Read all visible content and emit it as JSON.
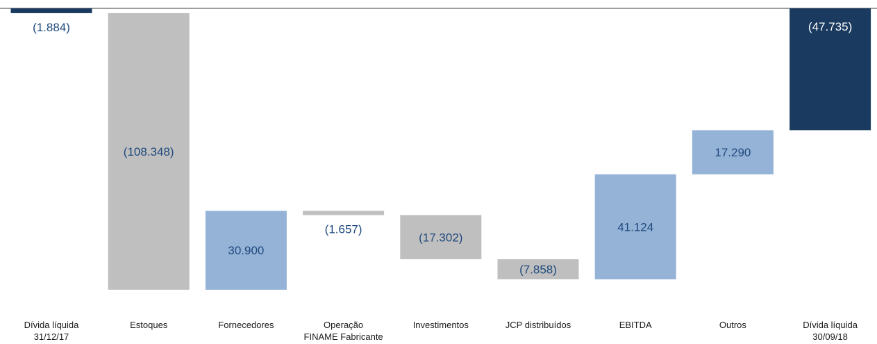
{
  "chart_data": {
    "type": "bar",
    "subtype": "waterfall",
    "categories": [
      [
        "Dívida líquida",
        "31/12/17"
      ],
      [
        "Estoques"
      ],
      [
        "Fornecedores"
      ],
      [
        "Operação",
        "FINAME Fabricante"
      ],
      [
        "Investimentos"
      ],
      [
        "JCP distribuídos"
      ],
      [
        "EBITDA"
      ],
      [
        "Outros"
      ],
      [
        "Dívida líquida",
        "30/09/18"
      ]
    ],
    "values": [
      -1884,
      -108348,
      30900,
      -1657,
      -17302,
      -7858,
      41124,
      17290,
      -47735
    ],
    "labels": [
      "(1.884)",
      "(108.348)",
      "30.900",
      "(1.657)",
      "(17.302)",
      "(7.858)",
      "41.124",
      "17.290",
      "(47.735)"
    ],
    "kinds": [
      "total",
      "negative",
      "positive",
      "negative",
      "negative",
      "negative",
      "positive",
      "positive",
      "total"
    ],
    "colors": {
      "total": "#1a3a5f",
      "negative": "#bfbfbf",
      "positive": "#95b3d7",
      "label_text": "#1f497d",
      "label_text_on_total": "#ffffff",
      "baseline": "#7f7f7f"
    },
    "grid": false,
    "legend": "none",
    "title": "",
    "xlabel": "",
    "ylabel": ""
  }
}
